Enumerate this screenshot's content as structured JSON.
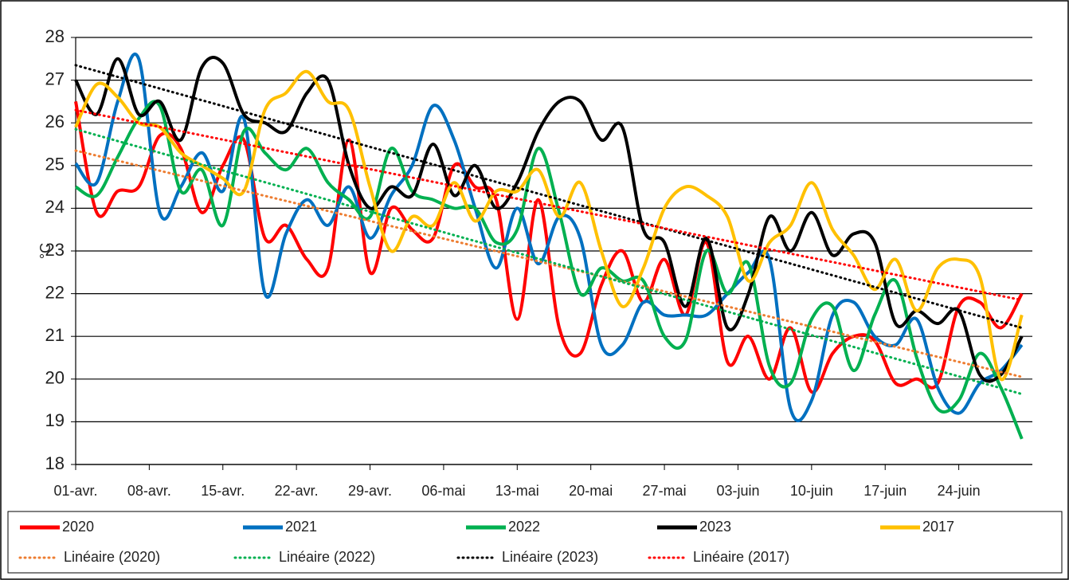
{
  "chart_data": {
    "type": "line",
    "y_label": "°C",
    "x": [
      0,
      2,
      4,
      6,
      8,
      10,
      12,
      14,
      16,
      18,
      20,
      22,
      24,
      26,
      28,
      30,
      32,
      34,
      36,
      38,
      40,
      42,
      44,
      46,
      48,
      50,
      52,
      54,
      56,
      58,
      60,
      62,
      64,
      66,
      68,
      70,
      72,
      74,
      76,
      78,
      80,
      82,
      84,
      86,
      88,
      90
    ],
    "xlim": [
      0,
      91
    ],
    "xticks": [
      {
        "value": 0,
        "label": "01-avr."
      },
      {
        "value": 7,
        "label": "08-avr."
      },
      {
        "value": 14,
        "label": "15-avr."
      },
      {
        "value": 21,
        "label": "22-avr."
      },
      {
        "value": 28,
        "label": "29-avr."
      },
      {
        "value": 35,
        "label": "06-mai"
      },
      {
        "value": 42,
        "label": "13-mai"
      },
      {
        "value": 49,
        "label": "20-mai"
      },
      {
        "value": 56,
        "label": "27-mai"
      },
      {
        "value": 63,
        "label": "03-juin"
      },
      {
        "value": 70,
        "label": "10-juin"
      },
      {
        "value": 77,
        "label": "17-juin"
      },
      {
        "value": 84,
        "label": "24-juin"
      }
    ],
    "ylim": [
      18,
      28
    ],
    "yticks": [
      18,
      19,
      20,
      21,
      22,
      23,
      24,
      25,
      26,
      27,
      28
    ],
    "grid": true,
    "legend": "bottom",
    "series": [
      {
        "name": "2020",
        "color": "#ff0000",
        "values": [
          26.5,
          23.9,
          24.4,
          24.5,
          25.7,
          25.4,
          23.9,
          25.0,
          25.6,
          23.3,
          23.6,
          22.8,
          22.6,
          25.6,
          22.5,
          24.0,
          23.5,
          23.3,
          25.0,
          24.5,
          24.2,
          21.4,
          24.2,
          21.2,
          20.6,
          22.2,
          23.0,
          21.8,
          22.8,
          21.5,
          23.2,
          20.4,
          21.0,
          20.0,
          21.2,
          19.7,
          20.6,
          21.0,
          20.9,
          19.9,
          20.0,
          19.9,
          21.7,
          21.8,
          21.2,
          22.0
        ]
      },
      {
        "name": "2021",
        "color": "#0070c0",
        "values": [
          25.05,
          24.6,
          26.5,
          27.5,
          23.9,
          24.5,
          25.3,
          24.4,
          26.1,
          22.0,
          23.4,
          24.2,
          23.6,
          24.5,
          23.3,
          24.3,
          25.0,
          26.4,
          25.6,
          24.0,
          22.6,
          24.0,
          22.7,
          23.8,
          23.3,
          20.8,
          20.8,
          21.8,
          21.5,
          21.5,
          21.5,
          22.0,
          22.5,
          22.8,
          19.3,
          19.5,
          21.5,
          21.8,
          21.0,
          20.8,
          21.4,
          19.8,
          19.2,
          19.9,
          20.2,
          20.8
        ]
      },
      {
        "name": "2022",
        "color": "#00b050",
        "values": [
          24.5,
          24.3,
          25.2,
          26.1,
          26.4,
          24.4,
          24.9,
          23.6,
          25.8,
          25.3,
          24.9,
          25.4,
          24.6,
          24.2,
          23.8,
          25.4,
          24.4,
          24.2,
          24.0,
          24.0,
          23.2,
          23.5,
          25.4,
          23.9,
          22.0,
          22.6,
          22.3,
          22.3,
          21.0,
          20.9,
          23.0,
          22.0,
          22.7,
          20.3,
          19.9,
          21.4,
          21.7,
          20.2,
          21.5,
          22.3,
          20.5,
          19.3,
          19.5,
          20.6,
          19.8,
          18.6
        ]
      },
      {
        "name": "2023",
        "color": "#000000",
        "values": [
          27.0,
          26.2,
          27.5,
          26.2,
          26.5,
          25.6,
          27.3,
          27.4,
          26.2,
          26.0,
          25.8,
          26.7,
          27.0,
          25.0,
          24.0,
          24.5,
          24.3,
          25.5,
          24.3,
          25.0,
          24.0,
          24.6,
          25.8,
          26.5,
          26.5,
          25.6,
          25.9,
          23.5,
          23.2,
          21.7,
          23.3,
          21.2,
          22.0,
          23.8,
          23.0,
          23.9,
          22.9,
          23.4,
          23.2,
          21.3,
          21.6,
          21.3,
          21.6,
          20.1,
          20.1,
          21.0
        ]
      },
      {
        "name": "2017",
        "color": "#ffc000",
        "values": [
          25.9,
          26.9,
          26.6,
          26.0,
          25.9,
          25.3,
          25.0,
          24.7,
          24.4,
          26.3,
          26.7,
          27.2,
          26.5,
          26.3,
          24.5,
          23.0,
          23.8,
          23.6,
          24.6,
          23.7,
          24.4,
          24.4,
          24.9,
          23.8,
          24.6,
          23.0,
          21.7,
          22.6,
          24.0,
          24.5,
          24.3,
          23.8,
          22.3,
          23.2,
          23.6,
          24.6,
          23.5,
          22.9,
          22.1,
          22.8,
          21.6,
          22.6,
          22.8,
          22.4,
          20.0,
          21.5
        ]
      }
    ],
    "trendlines": [
      {
        "name": "Linéaire (2020)",
        "color": "#ed7d31",
        "x": [
          0,
          90
        ],
        "values": [
          25.35,
          20.05
        ]
      },
      {
        "name": "Linéaire (2022)",
        "color": "#00b050",
        "x": [
          0,
          90
        ],
        "values": [
          25.85,
          19.65
        ]
      },
      {
        "name": "Linéaire (2023)",
        "color": "#000000",
        "x": [
          0,
          90
        ],
        "values": [
          27.35,
          21.2
        ]
      },
      {
        "name": "Linéaire (2017)",
        "color": "#ff0000",
        "x": [
          0,
          90
        ],
        "values": [
          26.3,
          21.85
        ]
      }
    ]
  }
}
